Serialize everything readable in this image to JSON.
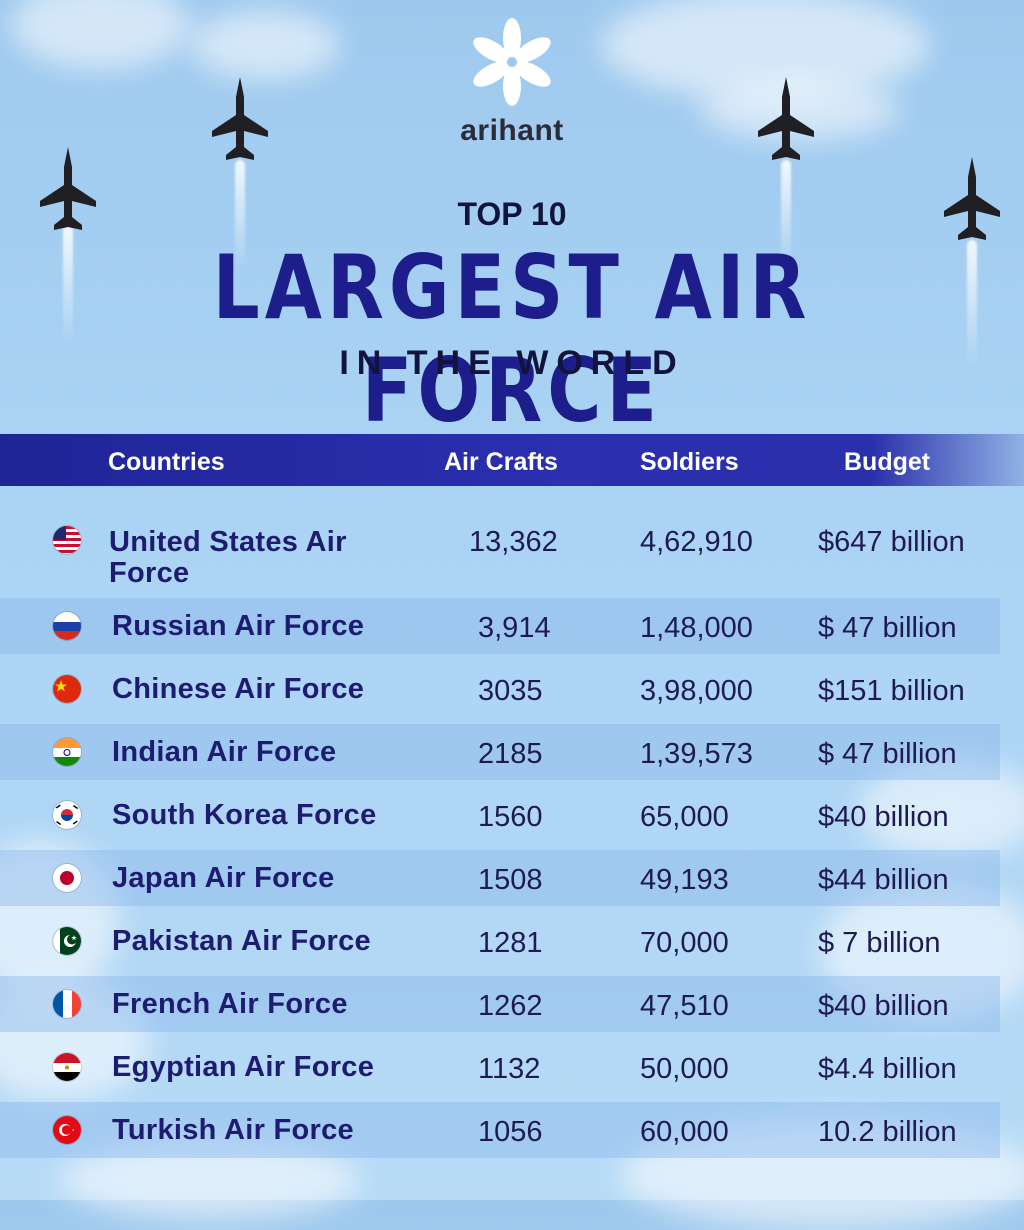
{
  "brand": {
    "name": "arihant",
    "logo_icon": "white-flower-logo"
  },
  "title": {
    "top": "TOP 10",
    "main": "LARGEST AIR FORCE",
    "sub": "IN THE WORLD"
  },
  "table": {
    "headers": {
      "country": "Countries",
      "aircrafts": "Air Crafts",
      "soldiers": "Soldiers",
      "budget": "Budget"
    },
    "rows": [
      {
        "flag": "us-flag-icon",
        "country": "United States Air",
        "country2": "Force",
        "aircrafts": "13,362",
        "soldiers": "4,62,910",
        "budget": "$647 billion"
      },
      {
        "flag": "russia-flag-icon",
        "country": "Russian Air Force",
        "aircrafts": "3,914",
        "soldiers": "1,48,000",
        "budget": "$ 47 billion"
      },
      {
        "flag": "china-flag-icon",
        "country": "Chinese Air Force",
        "aircrafts": "3035",
        "soldiers": "3,98,000",
        "budget": "$151 billion"
      },
      {
        "flag": "india-flag-icon",
        "country": "Indian Air Force",
        "aircrafts": "2185",
        "soldiers": "1,39,573",
        "budget": "$ 47 billion"
      },
      {
        "flag": "south-korea-flag-icon",
        "country": "South Korea Force",
        "aircrafts": "1560",
        "soldiers": "65,000",
        "budget": "$40 billion"
      },
      {
        "flag": "japan-flag-icon",
        "country": "Japan Air Force",
        "aircrafts": "1508",
        "soldiers": "49,193",
        "budget": "$44 billion"
      },
      {
        "flag": "pakistan-flag-icon",
        "country": "Pakistan Air Force",
        "aircrafts": "1281",
        "soldiers": "70,000",
        "budget": "$ 7 billion"
      },
      {
        "flag": "france-flag-icon",
        "country": "French Air Force",
        "aircrafts": "1262",
        "soldiers": "47,510",
        "budget": "$40 billion"
      },
      {
        "flag": "egypt-flag-icon",
        "country": "Egyptian Air Force",
        "aircrafts": "1132",
        "soldiers": "50,000",
        "budget": "$4.4 billion"
      },
      {
        "flag": "turkey-flag-icon",
        "country": "Turkish Air Force",
        "aircrafts": "1056",
        "soldiers": "60,000",
        "budget": "10.2 billion"
      }
    ]
  },
  "colors": {
    "title_blue": "#1d1e8c",
    "header_band": "#2b2fb0",
    "text_dark": "#1e1b52"
  }
}
